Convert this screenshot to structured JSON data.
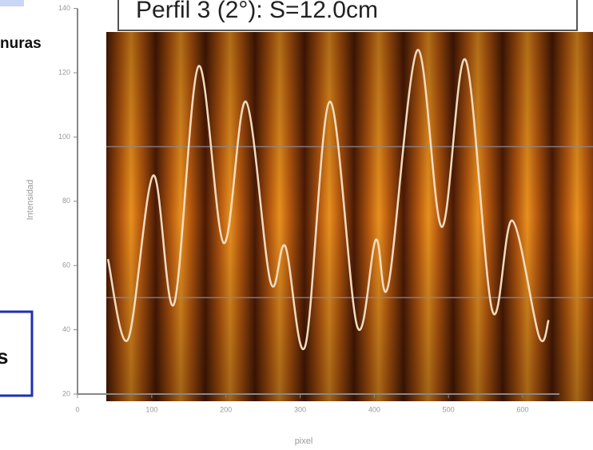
{
  "chart_data": {
    "type": "line",
    "title": "Perfil 3 (2°): S=12.0cm",
    "side_text_top": "nuras",
    "side_text_bottom": "s",
    "xlabel": "pixel",
    "ylabel": "Intensidad",
    "xlim": [
      0,
      700
    ],
    "ylim": [
      20,
      140
    ],
    "xticks": [
      0,
      100,
      200,
      300,
      400,
      500,
      600
    ],
    "yticks": [
      20,
      40,
      60,
      80,
      100,
      120,
      140
    ],
    "reference_lines": [
      97,
      50
    ],
    "series": [
      {
        "color": "#f3dcc0",
        "x": [
          41,
          68,
          102,
          130,
          163,
          197,
          227,
          260,
          280,
          307,
          340,
          377,
          402,
          419,
          458,
          491,
          523,
          559,
          586,
          622,
          635
        ],
        "values": [
          62,
          37,
          88,
          48,
          122,
          67,
          111,
          55,
          66,
          35,
          111,
          41,
          68,
          54,
          127,
          72,
          124,
          46,
          74,
          38,
          43
        ]
      }
    ]
  }
}
